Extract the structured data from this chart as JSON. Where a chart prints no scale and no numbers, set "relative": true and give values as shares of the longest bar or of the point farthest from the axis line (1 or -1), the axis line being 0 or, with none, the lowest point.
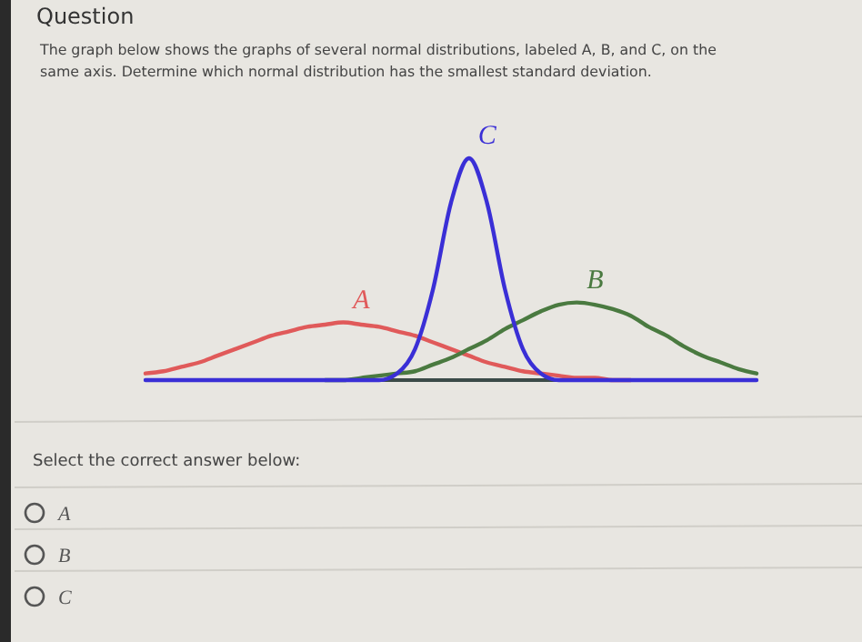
{
  "chart_data": {
    "type": "line",
    "relative": true,
    "title": "Question",
    "subtitle": "The graph below shows the graphs of several normal distributions, labeled A, B, and C, on the same axis. Determine which normal distribution has the smallest standard deviation.",
    "categories": [
      null,
      null,
      null,
      null,
      null,
      null,
      null,
      null,
      null,
      null,
      null,
      null,
      null,
      null,
      null,
      null,
      null,
      null,
      null,
      null,
      null,
      null,
      null,
      null,
      null,
      null,
      null,
      null,
      null,
      null,
      null,
      null,
      null,
      null,
      null
    ],
    "series": [
      {
        "name": "A",
        "color": "#e05a5a",
        "values": [
          0.03,
          0.04,
          0.06,
          0.08,
          0.11,
          0.14,
          0.17,
          0.2,
          0.22,
          0.24,
          0.25,
          0.26,
          0.25,
          0.24,
          0.22,
          0.2,
          0.17,
          0.14,
          0.11,
          0.08,
          0.06,
          0.04,
          0.03,
          0.02,
          0.01,
          0.01,
          0,
          0,
          null,
          null,
          null,
          null,
          null,
          null,
          null
        ]
      },
      {
        "name": "B",
        "color": "#4a7a40",
        "values": [
          null,
          null,
          null,
          null,
          null,
          null,
          null,
          null,
          null,
          null,
          0,
          0,
          0.01,
          0.02,
          0.03,
          0.04,
          0.07,
          0.1,
          0.14,
          0.18,
          0.23,
          0.27,
          0.31,
          0.34,
          0.35,
          0.34,
          0.32,
          0.29,
          0.24,
          0.2,
          0.15,
          0.11,
          0.08,
          0.05,
          0.03
        ]
      },
      {
        "name": "C",
        "color": "#3a2fd6",
        "values": [
          0,
          0,
          0,
          0,
          0,
          0,
          0,
          0,
          0,
          0,
          0,
          0,
          0,
          0,
          0.03,
          0.14,
          0.41,
          0.8,
          1,
          0.8,
          0.41,
          0.14,
          0.03,
          0,
          0,
          0,
          0,
          0,
          0,
          0,
          0,
          0,
          0,
          0,
          0
        ]
      }
    ],
    "annotations": [
      "Select the correct answer below:",
      "A",
      "B",
      "C"
    ],
    "legend": false,
    "grid": false,
    "marker": "none",
    "line_style": "solid"
  }
}
